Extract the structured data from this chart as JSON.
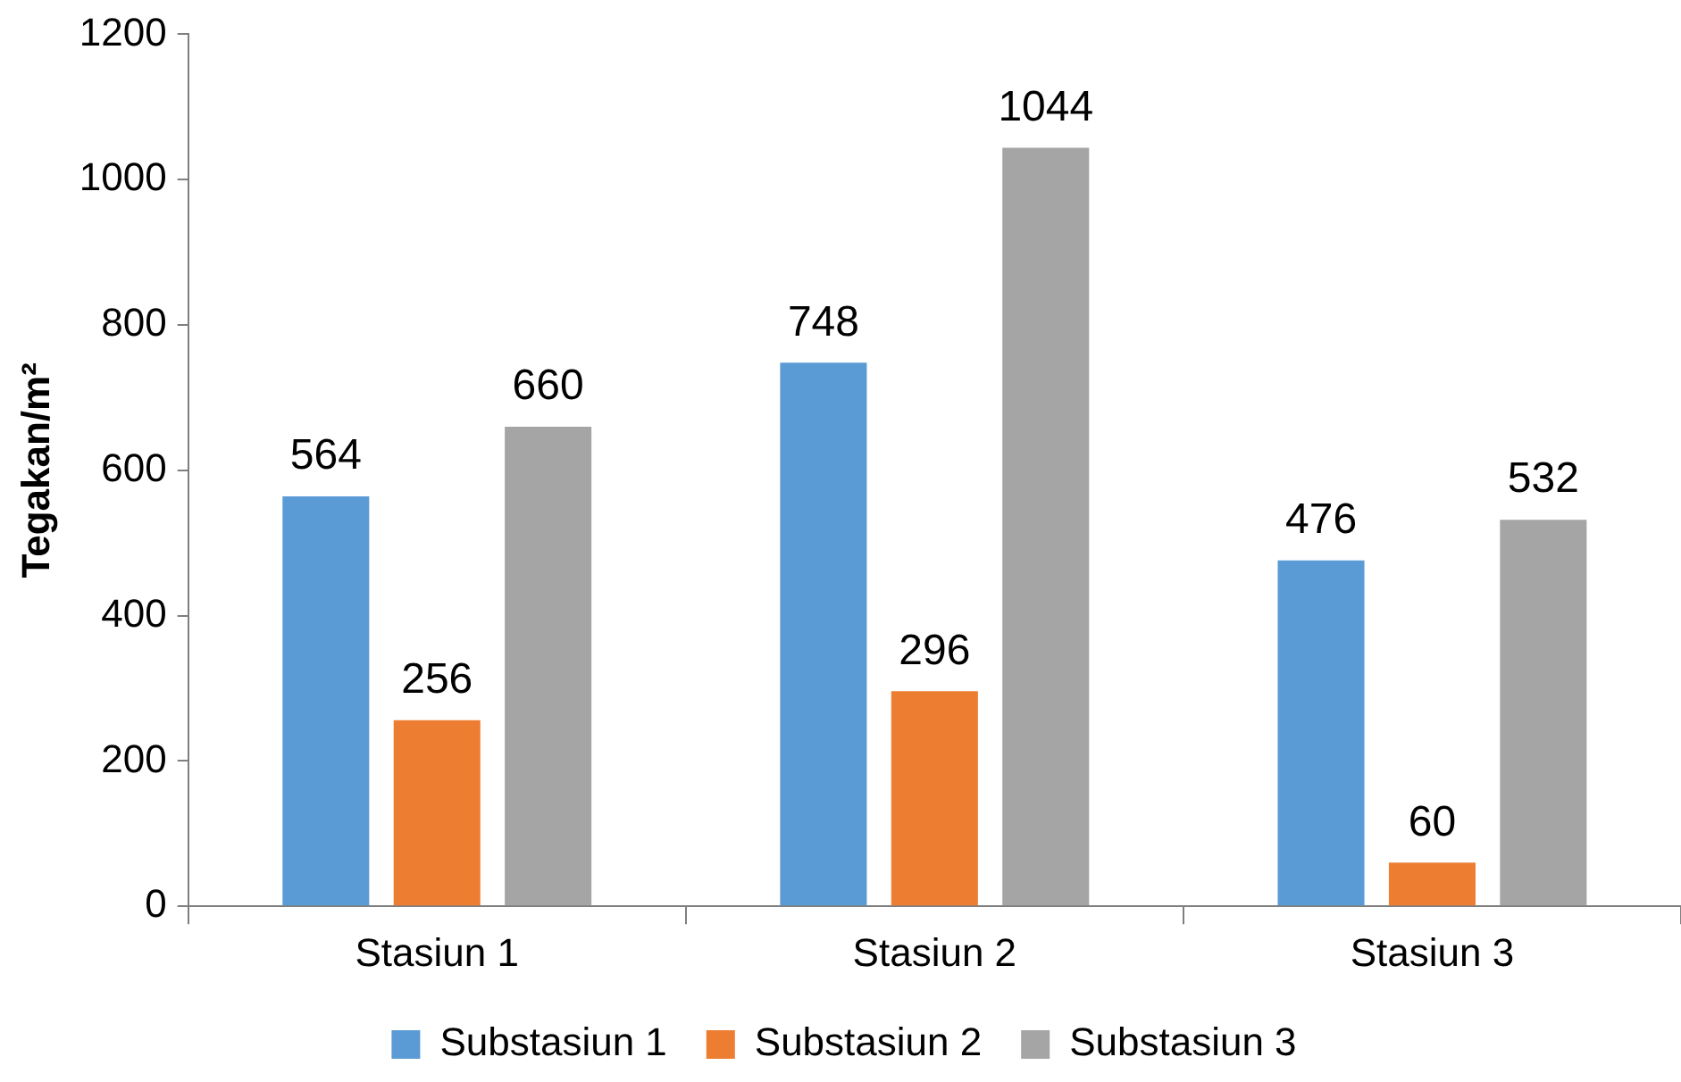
{
  "chart_data": {
    "type": "bar",
    "ylabel": "Tegakan/m²",
    "categories": [
      "Stasiun 1",
      "Stasiun 2",
      "Stasiun 3"
    ],
    "series": [
      {
        "name": "Substasiun 1",
        "color": "#5b9bd5",
        "values": [
          564,
          748,
          476
        ]
      },
      {
        "name": "Substasiun 2",
        "color": "#ed7d31",
        "values": [
          256,
          296,
          60
        ]
      },
      {
        "name": "Substasiun 3",
        "color": "#a5a5a5",
        "values": [
          660,
          1044,
          532
        ]
      }
    ],
    "ylim": [
      0,
      1200
    ],
    "yticks": [
      0,
      200,
      400,
      600,
      800,
      1000,
      1200
    ],
    "grid": false,
    "legend": "bottom",
    "data_labels": true
  }
}
